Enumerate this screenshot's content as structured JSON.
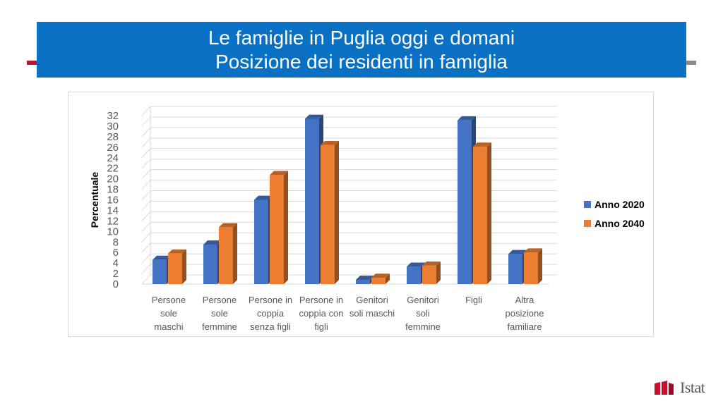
{
  "header": {
    "title_line1": "Le famiglie in Puglia oggi e domani",
    "title_line2": "Posizione dei residenti in famiglia"
  },
  "logo": {
    "text": "Istat"
  },
  "colors": {
    "series_2020": "#4472c4",
    "series_2040": "#ed7d31",
    "header_bg": "#0a70c4",
    "logo_red": "#c8102e"
  },
  "chart_data": {
    "type": "bar",
    "style": "3d-clustered-column",
    "ylabel": "Percentuale",
    "xlabel": "",
    "ylim": [
      0,
      32
    ],
    "yticks": [
      0,
      2,
      4,
      6,
      8,
      10,
      12,
      14,
      16,
      18,
      20,
      22,
      24,
      26,
      28,
      30,
      32
    ],
    "grid": true,
    "legend_position": "right",
    "categories": [
      [
        "Persone",
        "sole",
        "maschi"
      ],
      [
        "Persone",
        "sole",
        "femmine"
      ],
      [
        "Persone in",
        "coppia",
        "senza figli"
      ],
      [
        "Persone in",
        "coppia con",
        "figli"
      ],
      [
        "Genitori",
        "soli maschi"
      ],
      [
        "Genitori",
        "soli",
        "femmine"
      ],
      [
        "Figli"
      ],
      [
        "Altra",
        "posizione",
        "familiare"
      ]
    ],
    "series": [
      {
        "name": "Anno 2020",
        "color": "#4472c4",
        "values": [
          4.6,
          7.5,
          16.0,
          31.4,
          0.8,
          3.3,
          31.1,
          5.7
        ]
      },
      {
        "name": "Anno 2040",
        "color": "#ed7d31",
        "values": [
          5.8,
          10.8,
          20.7,
          26.4,
          1.2,
          3.5,
          26.1,
          6.0
        ]
      }
    ]
  }
}
